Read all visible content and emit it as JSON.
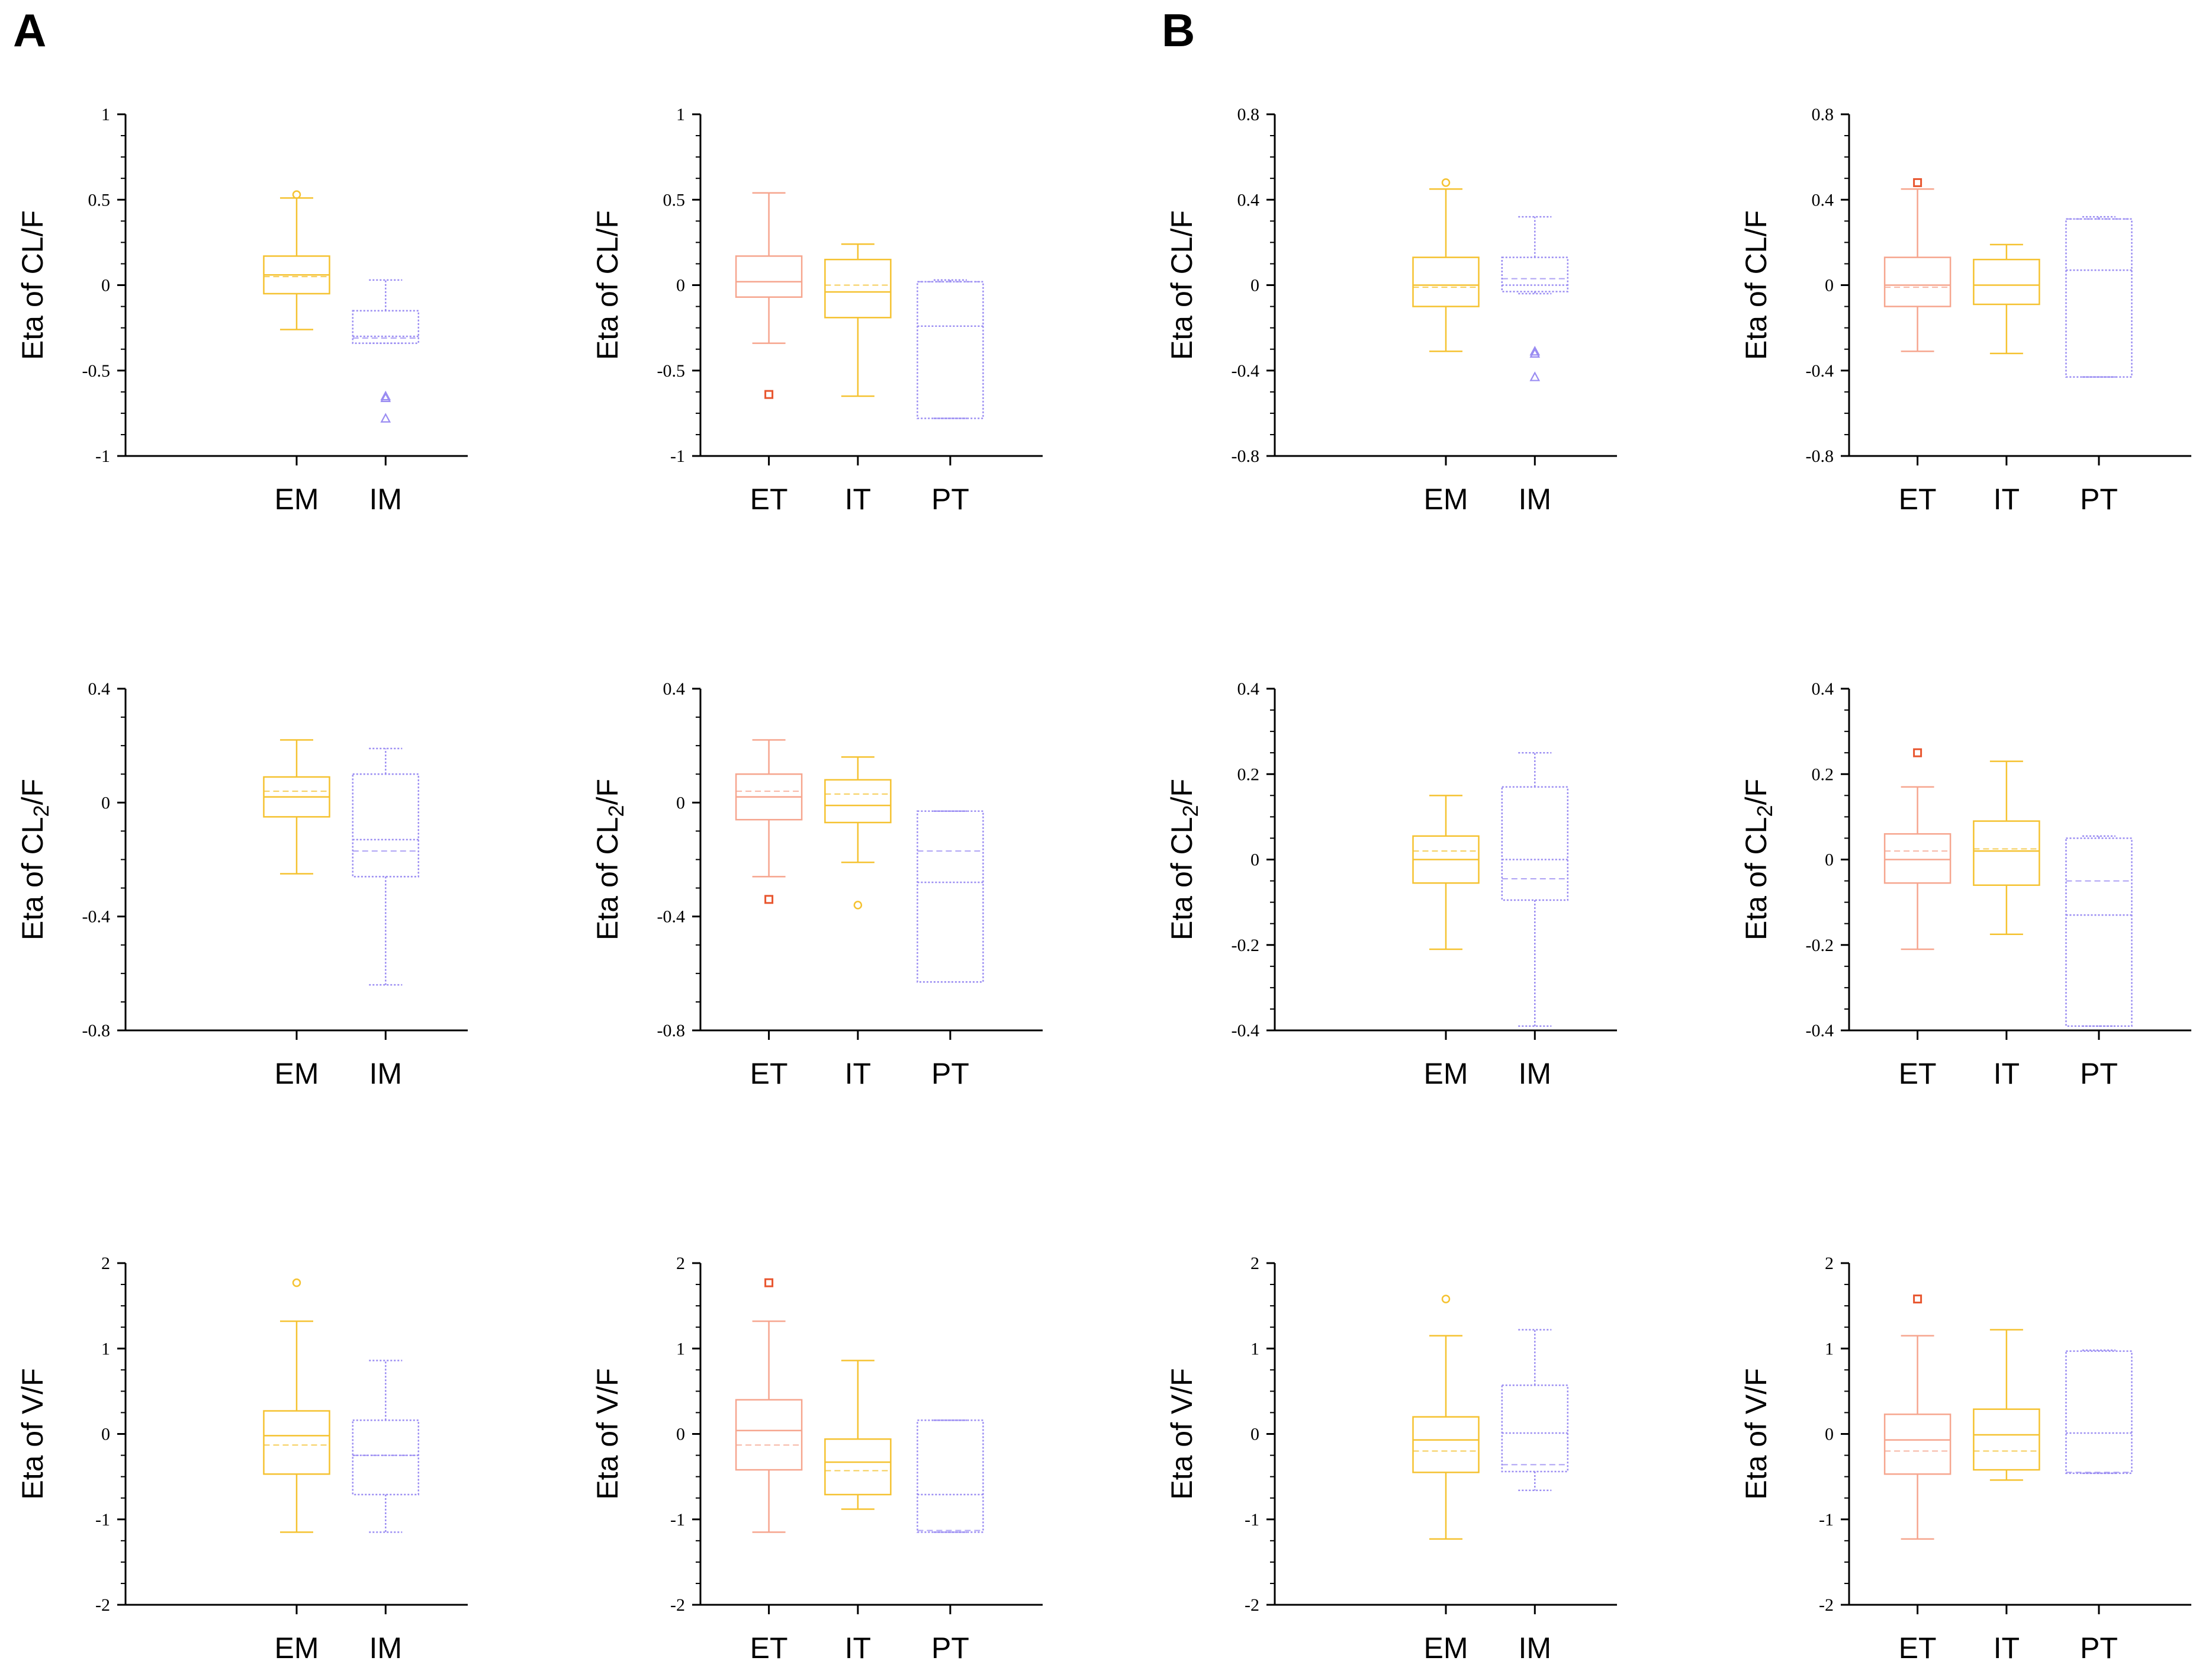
{
  "panel_labels": [
    "A",
    "B"
  ],
  "colors": {
    "EM": "#F5C230",
    "IM": "#9A8CF2",
    "ET": "#F6A58E",
    "IT": "#F5C230",
    "PT": "#9A8CF2",
    "ET_outlier": "#E8562F",
    "axis": "#000000"
  },
  "chart_data": [
    {
      "type": "box",
      "panel": "A",
      "ylabel": "Eta of CL/F",
      "ylabel_parts": [
        "Eta of CL/F"
      ],
      "ylim": [
        -1,
        1
      ],
      "yticks": [
        -1,
        -0.5,
        0,
        0.5,
        1
      ],
      "ytick_labels": [
        "-1",
        "-0.5",
        "0",
        "0.5",
        "1"
      ],
      "categories": [
        "EM",
        "IM"
      ],
      "boxes": [
        {
          "group": "EM",
          "min": -0.26,
          "q1": -0.05,
          "median": 0.06,
          "mean": 0.05,
          "q3": 0.17,
          "max": 0.51,
          "outliers": [
            0.53
          ],
          "marker": "circle",
          "style": "solid"
        },
        {
          "group": "IM",
          "min": -0.34,
          "q1": -0.34,
          "median": -0.3,
          "mean": -0.31,
          "q3": -0.15,
          "max": 0.03,
          "outliers": [
            -0.65,
            -0.66,
            -0.78
          ],
          "marker": "triangle",
          "style": "dotted"
        }
      ]
    },
    {
      "type": "box",
      "panel": "A",
      "ylabel": "Eta of CL/F",
      "ylabel_parts": [
        "Eta of CL/F"
      ],
      "ylim": [
        -1,
        1
      ],
      "yticks": [
        -1,
        -0.5,
        0,
        0.5,
        1
      ],
      "ytick_labels": [
        "-1",
        "-0.5",
        "0",
        "0.5",
        "1"
      ],
      "categories": [
        "ET",
        "IT",
        "PT"
      ],
      "boxes": [
        {
          "group": "ET",
          "min": -0.34,
          "q1": -0.07,
          "median": 0.02,
          "mean": 0.02,
          "q3": 0.17,
          "max": 0.54,
          "outliers": [
            -0.64
          ],
          "marker": "square",
          "style": "solid"
        },
        {
          "group": "IT",
          "min": -0.65,
          "q1": -0.19,
          "median": -0.04,
          "mean": 0.0,
          "q3": 0.15,
          "max": 0.24,
          "outliers": [],
          "marker": "circle",
          "style": "solid"
        },
        {
          "group": "PT",
          "min": -0.78,
          "q1": -0.78,
          "median": -0.24,
          "mean": 0.02,
          "q3": 0.02,
          "max": 0.03,
          "outliers": [],
          "marker": "triangle",
          "style": "dotted"
        }
      ]
    },
    {
      "type": "box",
      "panel": "B",
      "ylabel": "Eta of CL/F",
      "ylabel_parts": [
        "Eta of CL/F"
      ],
      "ylim": [
        -0.8,
        0.8
      ],
      "yticks": [
        -0.8,
        -0.4,
        0,
        0.4,
        0.8
      ],
      "ytick_labels": [
        "-0.8",
        "-0.4",
        "0",
        "0.4",
        "0.8"
      ],
      "categories": [
        "EM",
        "IM"
      ],
      "boxes": [
        {
          "group": "EM",
          "min": -0.31,
          "q1": -0.1,
          "median": 0.0,
          "mean": -0.01,
          "q3": 0.13,
          "max": 0.45,
          "outliers": [
            0.48
          ],
          "marker": "circle",
          "style": "solid"
        },
        {
          "group": "IM",
          "min": -0.04,
          "q1": -0.03,
          "median": 0.0,
          "mean": 0.03,
          "q3": 0.13,
          "max": 0.32,
          "outliers": [
            -0.31,
            -0.32,
            -0.43
          ],
          "marker": "triangle",
          "style": "dotted"
        }
      ]
    },
    {
      "type": "box",
      "panel": "B",
      "ylabel": "Eta of CL/F",
      "ylabel_parts": [
        "Eta of CL/F"
      ],
      "ylim": [
        -0.8,
        0.8
      ],
      "yticks": [
        -0.8,
        -0.4,
        0,
        0.4,
        0.8
      ],
      "ytick_labels": [
        "-0.8",
        "-0.4",
        "0",
        "0.4",
        "0.8"
      ],
      "categories": [
        "ET",
        "IT",
        "PT"
      ],
      "boxes": [
        {
          "group": "ET",
          "min": -0.31,
          "q1": -0.1,
          "median": 0.0,
          "mean": -0.01,
          "q3": 0.13,
          "max": 0.45,
          "outliers": [
            0.48
          ],
          "marker": "square",
          "style": "solid"
        },
        {
          "group": "IT",
          "min": -0.32,
          "q1": -0.09,
          "median": 0.0,
          "mean": 0.0,
          "q3": 0.12,
          "max": 0.19,
          "outliers": [],
          "marker": "circle",
          "style": "solid"
        },
        {
          "group": "PT",
          "min": -0.43,
          "q1": -0.43,
          "median": 0.07,
          "mean": 0.31,
          "q3": 0.31,
          "max": 0.32,
          "outliers": [],
          "marker": "triangle",
          "style": "dotted"
        }
      ]
    },
    {
      "type": "box",
      "panel": "A",
      "ylabel": "Eta of CL2/F",
      "ylabel_parts": [
        "Eta of CL",
        "2",
        "/F"
      ],
      "ylim": [
        -0.8,
        0.4
      ],
      "yticks": [
        -0.8,
        -0.4,
        0,
        0.4
      ],
      "ytick_labels": [
        "-0.8",
        "-0.4",
        "0",
        "0.4"
      ],
      "categories": [
        "EM",
        "IM"
      ],
      "boxes": [
        {
          "group": "EM",
          "min": -0.25,
          "q1": -0.05,
          "median": 0.02,
          "mean": 0.04,
          "q3": 0.09,
          "max": 0.22,
          "outliers": [],
          "marker": "circle",
          "style": "solid"
        },
        {
          "group": "IM",
          "min": -0.64,
          "q1": -0.26,
          "median": -0.13,
          "mean": -0.17,
          "q3": 0.1,
          "max": 0.19,
          "outliers": [],
          "marker": "triangle",
          "style": "dotted"
        }
      ]
    },
    {
      "type": "box",
      "panel": "A",
      "ylabel": "Eta of CL2/F",
      "ylabel_parts": [
        "Eta of CL",
        "2",
        "/F"
      ],
      "ylim": [
        -0.8,
        0.4
      ],
      "yticks": [
        -0.8,
        -0.4,
        0,
        0.4
      ],
      "ytick_labels": [
        "-0.8",
        "-0.4",
        "0",
        "0.4"
      ],
      "categories": [
        "ET",
        "IT",
        "PT"
      ],
      "boxes": [
        {
          "group": "ET",
          "min": -0.26,
          "q1": -0.06,
          "median": 0.02,
          "mean": 0.04,
          "q3": 0.1,
          "max": 0.22,
          "outliers": [
            -0.34
          ],
          "marker": "square",
          "style": "solid"
        },
        {
          "group": "IT",
          "min": -0.21,
          "q1": -0.07,
          "median": -0.01,
          "mean": 0.03,
          "q3": 0.08,
          "max": 0.16,
          "outliers": [
            -0.36
          ],
          "marker": "circle",
          "style": "solid"
        },
        {
          "group": "PT",
          "min": -0.63,
          "q1": -0.63,
          "median": -0.28,
          "mean": -0.17,
          "q3": -0.03,
          "max": -0.03,
          "outliers": [],
          "marker": "triangle",
          "style": "dotted"
        }
      ]
    },
    {
      "type": "box",
      "panel": "B",
      "ylabel": "Eta of CL2/F",
      "ylabel_parts": [
        "Eta of CL",
        "2",
        "/F"
      ],
      "ylim": [
        -0.4,
        0.4
      ],
      "yticks": [
        -0.4,
        -0.2,
        0,
        0.2,
        0.4
      ],
      "ytick_labels": [
        "-0.4",
        "-0.2",
        "0",
        "0.2",
        "0.4"
      ],
      "categories": [
        "EM",
        "IM"
      ],
      "boxes": [
        {
          "group": "EM",
          "min": -0.21,
          "q1": -0.055,
          "median": 0.0,
          "mean": 0.02,
          "q3": 0.055,
          "max": 0.15,
          "outliers": [],
          "marker": "circle",
          "style": "solid"
        },
        {
          "group": "IM",
          "min": -0.39,
          "q1": -0.095,
          "median": 0.0,
          "mean": -0.045,
          "q3": 0.17,
          "max": 0.25,
          "outliers": [],
          "marker": "triangle",
          "style": "dotted"
        }
      ]
    },
    {
      "type": "box",
      "panel": "B",
      "ylabel": "Eta of CL2/F",
      "ylabel_parts": [
        "Eta of CL",
        "2",
        "/F"
      ],
      "ylim": [
        -0.4,
        0.4
      ],
      "yticks": [
        -0.4,
        -0.2,
        0,
        0.2,
        0.4
      ],
      "ytick_labels": [
        "-0.4",
        "-0.2",
        "0",
        "0.2",
        "0.4"
      ],
      "categories": [
        "ET",
        "IT",
        "PT"
      ],
      "boxes": [
        {
          "group": "ET",
          "min": -0.21,
          "q1": -0.055,
          "median": 0.0,
          "mean": 0.02,
          "q3": 0.06,
          "max": 0.17,
          "outliers": [
            0.25
          ],
          "marker": "square",
          "style": "solid"
        },
        {
          "group": "IT",
          "min": -0.175,
          "q1": -0.06,
          "median": 0.02,
          "mean": 0.025,
          "q3": 0.09,
          "max": 0.23,
          "outliers": [],
          "marker": "circle",
          "style": "solid"
        },
        {
          "group": "PT",
          "min": -0.39,
          "q1": -0.39,
          "median": -0.13,
          "mean": -0.05,
          "q3": 0.05,
          "max": 0.055,
          "outliers": [],
          "marker": "triangle",
          "style": "dotted"
        }
      ]
    },
    {
      "type": "box",
      "panel": "A",
      "ylabel": "Eta of V/F",
      "ylabel_parts": [
        "Eta of V/F"
      ],
      "ylim": [
        -2,
        2
      ],
      "yticks": [
        -2,
        -1,
        0,
        1,
        2
      ],
      "ytick_labels": [
        "-2",
        "-1",
        "0",
        "1",
        "2"
      ],
      "categories": [
        "EM",
        "IM"
      ],
      "boxes": [
        {
          "group": "EM",
          "min": -1.15,
          "q1": -0.47,
          "median": -0.02,
          "mean": -0.13,
          "q3": 0.27,
          "max": 1.32,
          "outliers": [
            1.77
          ],
          "marker": "circle",
          "style": "solid"
        },
        {
          "group": "IM",
          "min": -1.15,
          "q1": -0.71,
          "median": -0.25,
          "mean": -0.25,
          "q3": 0.16,
          "max": 0.86,
          "outliers": [],
          "marker": "triangle",
          "style": "dotted"
        }
      ]
    },
    {
      "type": "box",
      "panel": "A",
      "ylabel": "Eta of V/F",
      "ylabel_parts": [
        "Eta of V/F"
      ],
      "ylim": [
        -2,
        2
      ],
      "yticks": [
        -2,
        -1,
        0,
        1,
        2
      ],
      "ytick_labels": [
        "-2",
        "-1",
        "0",
        "1",
        "2"
      ],
      "categories": [
        "ET",
        "IT",
        "PT"
      ],
      "boxes": [
        {
          "group": "ET",
          "min": -1.15,
          "q1": -0.42,
          "median": 0.04,
          "mean": -0.13,
          "q3": 0.4,
          "max": 1.32,
          "outliers": [
            1.77
          ],
          "marker": "square",
          "style": "solid"
        },
        {
          "group": "IT",
          "min": -0.88,
          "q1": -0.71,
          "median": -0.33,
          "mean": -0.43,
          "q3": -0.06,
          "max": 0.86,
          "outliers": [],
          "marker": "circle",
          "style": "solid"
        },
        {
          "group": "PT",
          "min": -1.15,
          "q1": -1.15,
          "median": -0.71,
          "mean": -1.13,
          "q3": 0.16,
          "max": 0.16,
          "outliers": [],
          "marker": "triangle",
          "style": "dotted"
        }
      ]
    },
    {
      "type": "box",
      "panel": "B",
      "ylabel": "Eta of V/F",
      "ylabel_parts": [
        "Eta of V/F"
      ],
      "ylim": [
        -2,
        2
      ],
      "yticks": [
        -2,
        -1,
        0,
        1,
        2
      ],
      "ytick_labels": [
        "-2",
        "-1",
        "0",
        "1",
        "2"
      ],
      "categories": [
        "EM",
        "IM"
      ],
      "boxes": [
        {
          "group": "EM",
          "min": -1.23,
          "q1": -0.45,
          "median": -0.07,
          "mean": -0.2,
          "q3": 0.2,
          "max": 1.15,
          "outliers": [
            1.58
          ],
          "marker": "circle",
          "style": "solid"
        },
        {
          "group": "IM",
          "min": -0.66,
          "q1": -0.44,
          "median": 0.01,
          "mean": -0.36,
          "q3": 0.57,
          "max": 1.22,
          "outliers": [],
          "marker": "triangle",
          "style": "dotted"
        }
      ]
    },
    {
      "type": "box",
      "panel": "B",
      "ylabel": "Eta of V/F",
      "ylabel_parts": [
        "Eta of V/F"
      ],
      "ylim": [
        -2,
        2
      ],
      "yticks": [
        -2,
        -1,
        0,
        1,
        2
      ],
      "ytick_labels": [
        "-2",
        "-1",
        "0",
        "1",
        "2"
      ],
      "categories": [
        "ET",
        "IT",
        "PT"
      ],
      "boxes": [
        {
          "group": "ET",
          "min": -1.23,
          "q1": -0.47,
          "median": -0.07,
          "mean": -0.2,
          "q3": 0.23,
          "max": 1.15,
          "outliers": [
            1.58
          ],
          "marker": "square",
          "style": "solid"
        },
        {
          "group": "IT",
          "min": -0.54,
          "q1": -0.42,
          "median": -0.01,
          "mean": -0.2,
          "q3": 0.29,
          "max": 1.22,
          "outliers": [],
          "marker": "circle",
          "style": "solid"
        },
        {
          "group": "PT",
          "min": -0.46,
          "q1": -0.46,
          "median": 0.01,
          "mean": -0.45,
          "q3": 0.97,
          "max": 0.98,
          "outliers": [],
          "marker": "triangle",
          "style": "dotted"
        }
      ]
    }
  ]
}
